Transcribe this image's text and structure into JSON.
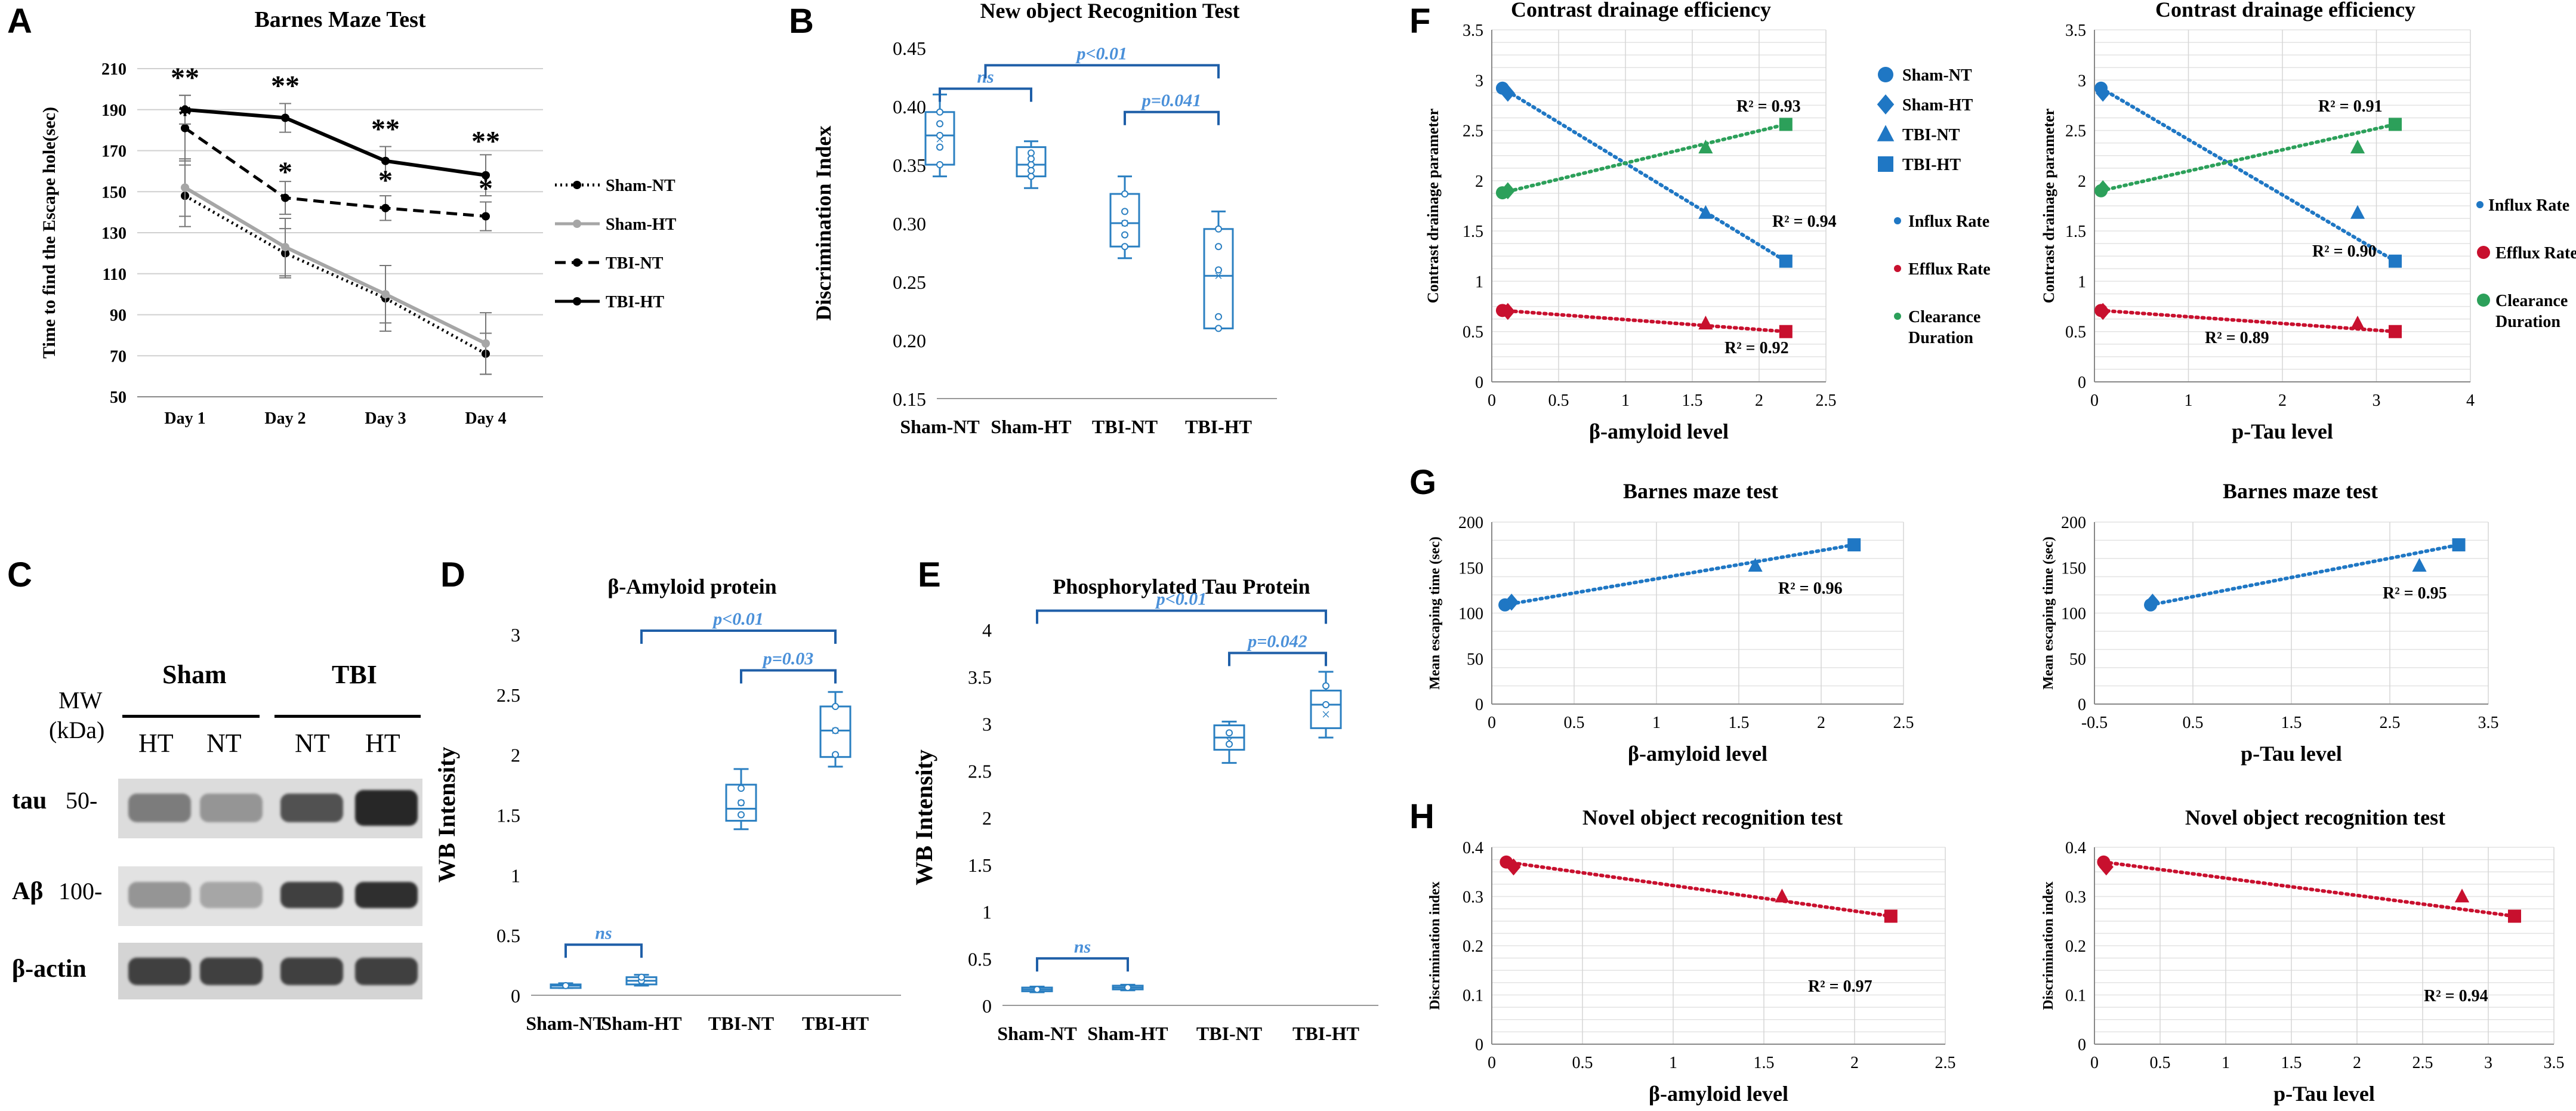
{
  "labels": {
    "A": "A",
    "B": "B",
    "C": "C",
    "D": "D",
    "E": "E",
    "F": "F",
    "G": "G",
    "H": "H"
  },
  "colors": {
    "blue": "#1f77c4",
    "box_blue": "#2a7fc1",
    "green": "#2ca05a",
    "red": "#c8102e",
    "grid": "#d9d9d9",
    "sig": "#1f5fa8",
    "sig_text": "#4a90d9"
  },
  "chart_data": [
    {
      "id": "A",
      "type": "line",
      "title": "Barnes Maze Test",
      "xlabel": "",
      "ylabel": "Time to find the Escape hole(sec)",
      "categories": [
        "Day 1",
        "Day 2",
        "Day 3",
        "Day 4"
      ],
      "yticks": [
        "50",
        "70",
        "90",
        "110",
        "130",
        "150",
        "170",
        "190",
        "210"
      ],
      "ylim": [
        50,
        210
      ],
      "series": [
        {
          "name": "Sham-NT",
          "style": "dotted",
          "color": "#000000",
          "values": [
            148,
            120,
            98,
            71
          ],
          "err": [
            15,
            12,
            16,
            10
          ]
        },
        {
          "name": "Sham-HT",
          "style": "solid",
          "color": "#a6a6a6",
          "values": [
            152,
            123,
            100,
            76
          ],
          "err": [
            14,
            14,
            14,
            15
          ]
        },
        {
          "name": "TBI-NT",
          "style": "dashed",
          "color": "#000000",
          "values": [
            181,
            147,
            142,
            138
          ],
          "err": [
            16,
            8,
            6,
            7
          ]
        },
        {
          "name": "TBI-HT",
          "style": "solid",
          "color": "#000000",
          "values": [
            190,
            186,
            165,
            158
          ],
          "err": [
            7,
            7,
            7,
            10
          ]
        }
      ],
      "annotations": [
        {
          "text": "**",
          "day": 0,
          "y": 201
        },
        {
          "text": "*",
          "day": 0,
          "y": 183
        },
        {
          "text": "**",
          "day": 1,
          "y": 197
        },
        {
          "text": "*",
          "day": 1,
          "y": 155
        },
        {
          "text": "**",
          "day": 2,
          "y": 176
        },
        {
          "text": "*",
          "day": 2,
          "y": 151
        },
        {
          "text": "**",
          "day": 3,
          "y": 170
        },
        {
          "text": "*",
          "day": 3,
          "y": 147
        }
      ]
    },
    {
      "id": "B",
      "type": "box",
      "title": "New object Recognition Test",
      "ylabel": "Discrimination Index",
      "categories": [
        "Sham-NT",
        "Sham-HT",
        "TBI-NT",
        "TBI-HT"
      ],
      "yticks": [
        "0.15",
        "0.20",
        "0.25",
        "0.30",
        "0.35",
        "0.40",
        "0.45"
      ],
      "ylim": [
        0.15,
        0.45
      ],
      "boxes": [
        {
          "min": 0.34,
          "q1": 0.35,
          "median": 0.375,
          "q3": 0.395,
          "max": 0.41,
          "mean": 0.372,
          "points": [
            0.35,
            0.365,
            0.375,
            0.385,
            0.395
          ]
        },
        {
          "min": 0.33,
          "q1": 0.34,
          "median": 0.35,
          "q3": 0.365,
          "max": 0.37,
          "mean": 0.352,
          "points": [
            0.34,
            0.345,
            0.35,
            0.355,
            0.36
          ]
        },
        {
          "min": 0.27,
          "q1": 0.28,
          "median": 0.3,
          "q3": 0.325,
          "max": 0.34,
          "mean": 0.3,
          "points": [
            0.28,
            0.29,
            0.3,
            0.31,
            0.325
          ]
        },
        {
          "min": 0.21,
          "q1": 0.21,
          "median": 0.255,
          "q3": 0.295,
          "max": 0.31,
          "mean": 0.255,
          "points": [
            0.21,
            0.22,
            0.26,
            0.28,
            0.295
          ]
        }
      ],
      "brackets": [
        {
          "from": 0,
          "to": 1,
          "label": "ns",
          "y": 0.415
        },
        {
          "from": 0.5,
          "to": 3,
          "label": "p<0.01",
          "y": 0.435
        },
        {
          "from": 2,
          "to": 3,
          "label": "p=0.041",
          "y": 0.395
        }
      ]
    },
    {
      "id": "D",
      "type": "box",
      "title": "β-Amyloid protein",
      "ylabel": "WB Intensity",
      "categories": [
        "Sham-NT",
        "Sham-HT",
        "TBI-NT",
        "TBI-HT"
      ],
      "yticks": [
        "0",
        "0.5",
        "1",
        "1.5",
        "2",
        "2.5",
        "3"
      ],
      "ylim": [
        0,
        3
      ],
      "boxes": [
        {
          "min": 0.06,
          "q1": 0.07,
          "median": 0.08,
          "q3": 0.09,
          "max": 0.1,
          "mean": 0.08,
          "points": [
            0.08
          ]
        },
        {
          "min": 0.08,
          "q1": 0.09,
          "median": 0.12,
          "q3": 0.15,
          "max": 0.17,
          "mean": 0.12,
          "points": [
            0.12,
            0.15
          ]
        },
        {
          "min": 1.38,
          "q1": 1.45,
          "median": 1.55,
          "q3": 1.75,
          "max": 1.88,
          "mean": 1.6,
          "points": [
            1.5,
            1.6,
            1.72
          ]
        },
        {
          "min": 1.9,
          "q1": 1.98,
          "median": 2.2,
          "q3": 2.4,
          "max": 2.52,
          "mean": 2.2,
          "points": [
            2.0,
            2.2,
            2.4
          ]
        }
      ],
      "brackets": [
        {
          "from": 0,
          "to": 1,
          "label": "ns",
          "y": 0.42
        },
        {
          "from": 1,
          "to": 3,
          "label": "p<0.01",
          "y": 3.03
        },
        {
          "from": 2,
          "to": 3,
          "label": "p=0.03",
          "y": 2.7
        }
      ]
    },
    {
      "id": "E",
      "type": "box",
      "title": "Phosphorylated Tau Protein",
      "ylabel": "WB Intensity",
      "categories": [
        "Sham-NT",
        "Sham-HT",
        "TBI-NT",
        "TBI-HT"
      ],
      "yticks": [
        "0",
        "0.5",
        "1",
        "1.5",
        "2",
        "2.5",
        "3",
        "3.5",
        "4"
      ],
      "ylim": [
        0,
        4
      ],
      "boxes": [
        {
          "min": 0.14,
          "q1": 0.15,
          "median": 0.17,
          "q3": 0.19,
          "max": 0.2,
          "mean": 0.17,
          "points": [
            0.17
          ]
        },
        {
          "min": 0.16,
          "q1": 0.17,
          "median": 0.19,
          "q3": 0.21,
          "max": 0.22,
          "mean": 0.19,
          "points": [
            0.19
          ]
        },
        {
          "min": 2.58,
          "q1": 2.72,
          "median": 2.85,
          "q3": 2.98,
          "max": 3.02,
          "mean": 2.82,
          "points": [
            2.78,
            2.9
          ]
        },
        {
          "min": 2.85,
          "q1": 2.95,
          "median": 3.2,
          "q3": 3.35,
          "max": 3.55,
          "mean": 3.1,
          "points": [
            3.2,
            3.4
          ]
        }
      ],
      "brackets": [
        {
          "from": 0,
          "to": 1,
          "label": "ns",
          "y": 0.5
        },
        {
          "from": 0,
          "to": 3,
          "label": "p<0.01",
          "y": 4.2
        },
        {
          "from": 2,
          "to": 3,
          "label": "p=0.042",
          "y": 3.75
        }
      ]
    },
    {
      "id": "F1",
      "type": "scatter",
      "title": "Contrast drainage efficiency",
      "xlabel": "β-amyloid level",
      "ylabel": "Contrast drainage parameter",
      "xlim": [
        0,
        2.5
      ],
      "ylim": [
        0,
        3.5
      ],
      "xticks": [
        "0",
        "0.5",
        "1",
        "1.5",
        "2",
        "2.5"
      ],
      "yticks": [
        "0",
        "0.5",
        "1",
        "1.5",
        "2",
        "2.5",
        "3",
        "3.5"
      ],
      "series": [
        {
          "name": "Influx Rate",
          "color": "#1f77c4",
          "x": [
            0.08,
            0.12,
            1.6,
            2.2
          ],
          "y": [
            2.92,
            2.87,
            1.68,
            1.2
          ],
          "r2": "R² = 0.94"
        },
        {
          "name": "Efflux Rate",
          "color": "#c8102e",
          "x": [
            0.08,
            0.12,
            1.6,
            2.2
          ],
          "y": [
            0.71,
            0.7,
            0.58,
            0.5
          ],
          "r2": "R² = 0.92"
        },
        {
          "name": "Clearance Duration",
          "color": "#2ca05a",
          "x": [
            0.08,
            0.12,
            1.6,
            2.2
          ],
          "y": [
            1.88,
            1.9,
            2.33,
            2.56
          ],
          "r2": "R² = 0.93"
        }
      ],
      "legend_groups": [
        "Sham-NT",
        "Sham-HT",
        "TBI-NT",
        "TBI-HT"
      ],
      "legend_series": [
        "Influx Rate",
        "Efflux Rate",
        "Clearance",
        "Duration"
      ]
    },
    {
      "id": "F2",
      "type": "scatter",
      "title": "Contrast drainage efficiency",
      "xlabel": "p-Tau level",
      "ylabel": "Contrast drainage parameter",
      "xlim": [
        0,
        4
      ],
      "ylim": [
        0,
        3.5
      ],
      "xticks": [
        "0",
        "1",
        "2",
        "3",
        "4"
      ],
      "yticks": [
        "0",
        "0.5",
        "1",
        "1.5",
        "2",
        "2.5",
        "3",
        "3.5"
      ],
      "series": [
        {
          "name": "Influx Rate",
          "color": "#1f77c4",
          "x": [
            0.07,
            0.09,
            2.8,
            3.2
          ],
          "y": [
            2.92,
            2.87,
            1.68,
            1.2
          ],
          "r2": "R² = 0.90"
        },
        {
          "name": "Efflux Rate",
          "color": "#c8102e",
          "x": [
            0.07,
            0.09,
            2.8,
            3.2
          ],
          "y": [
            0.71,
            0.7,
            0.58,
            0.5
          ],
          "r2": "R² = 0.89"
        },
        {
          "name": "Clearance Duration",
          "color": "#2ca05a",
          "x": [
            0.07,
            0.09,
            2.8,
            3.2
          ],
          "y": [
            1.9,
            1.92,
            2.33,
            2.56
          ],
          "r2": "R² = 0.91"
        }
      ],
      "legend_series": [
        "Influx Rate",
        "Efflux Rate",
        "Clearance",
        "Duration"
      ]
    },
    {
      "id": "G1",
      "type": "scatter",
      "title": "Barnes maze test",
      "xlabel": "β-amyloid level",
      "ylabel": "Mean escaping time (sec)",
      "xlim": [
        0,
        2.5
      ],
      "ylim": [
        0,
        200
      ],
      "xticks": [
        "0",
        "0.5",
        "1",
        "1.5",
        "2",
        "2.5"
      ],
      "yticks": [
        "0",
        "50",
        "100",
        "150",
        "200"
      ],
      "series": [
        {
          "name": "Mean escaping time",
          "color": "#1f77c4",
          "x": [
            0.08,
            0.12,
            1.6,
            2.2
          ],
          "y": [
            109,
            112,
            152,
            175
          ],
          "r2": "R² = 0.96"
        }
      ]
    },
    {
      "id": "G2",
      "type": "scatter",
      "title": "Barnes maze test",
      "xlabel": "p-Tau level",
      "ylabel": "Mean escaping time (sec)",
      "xlim": [
        -0.5,
        3.5
      ],
      "ylim": [
        0,
        200
      ],
      "xticks": [
        "-0.5",
        "0.5",
        "1.5",
        "2.5",
        "3.5"
      ],
      "yticks": [
        "0",
        "50",
        "100",
        "150",
        "200"
      ],
      "series": [
        {
          "name": "Mean escaping time",
          "color": "#1f77c4",
          "x": [
            0.07,
            0.09,
            2.8,
            3.2
          ],
          "y": [
            109,
            112,
            152,
            175
          ],
          "r2": "R² = 0.95"
        }
      ]
    },
    {
      "id": "H1",
      "type": "scatter",
      "title": "Novel object recognition test",
      "xlabel": "β-amyloid level",
      "ylabel": "Discrimination index",
      "xlim": [
        0,
        2.5
      ],
      "ylim": [
        0,
        0.4
      ],
      "xticks": [
        "0",
        "0.5",
        "1",
        "1.5",
        "2",
        "2.5"
      ],
      "yticks": [
        "0",
        "0.1",
        "0.2",
        "0.3",
        "0.4"
      ],
      "series": [
        {
          "name": "Discrimination index",
          "color": "#c8102e",
          "x": [
            0.08,
            0.12,
            1.6,
            2.2
          ],
          "y": [
            0.37,
            0.36,
            0.3,
            0.26
          ],
          "r2": "R² = 0.97"
        }
      ]
    },
    {
      "id": "H2",
      "type": "scatter",
      "title": "Novel object recognition test",
      "xlabel": "p-Tau level",
      "ylabel": "Discrimination index",
      "xlim": [
        0,
        3.5
      ],
      "ylim": [
        0,
        0.4
      ],
      "xticks": [
        "0",
        "0.5",
        "1",
        "1.5",
        "2",
        "2.5",
        "3",
        "3.5"
      ],
      "yticks": [
        "0",
        "0.1",
        "0.2",
        "0.3",
        "0.4"
      ],
      "series": [
        {
          "name": "Discrimination index",
          "color": "#c8102e",
          "x": [
            0.07,
            0.09,
            2.8,
            3.2
          ],
          "y": [
            0.37,
            0.36,
            0.3,
            0.26
          ],
          "r2": "R² = 0.94"
        }
      ]
    }
  ],
  "western_blot": {
    "mw_label": "MW",
    "kda_label": "(kDa)",
    "group_sham": "Sham",
    "group_tbi": "TBI",
    "lanes": [
      "HT",
      "NT",
      "NT",
      "HT"
    ],
    "rows": [
      {
        "name": "tau",
        "mw": "50-",
        "intensity": [
          0.45,
          0.3,
          0.7,
          0.95
        ]
      },
      {
        "name": "Aβ",
        "mw": "100-",
        "intensity": [
          0.3,
          0.2,
          0.8,
          0.9
        ]
      },
      {
        "name": "β-actin",
        "mw": "",
        "intensity": [
          0.8,
          0.8,
          0.8,
          0.8
        ]
      }
    ]
  }
}
